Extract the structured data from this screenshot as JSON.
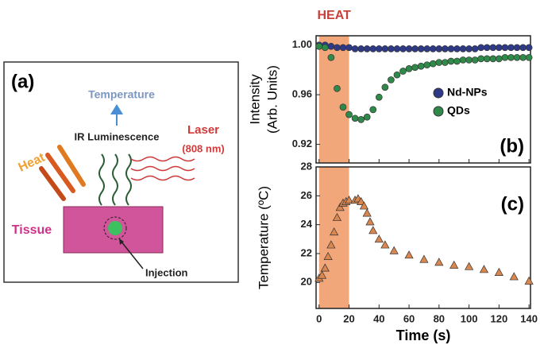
{
  "diagram": {
    "panel_label": "(a)",
    "temperature": "Temperature",
    "ir": "IR Luminescence",
    "heat": "Heat",
    "laser": "Laser",
    "laser_wavelength": "(808 nm)",
    "tissue": "Tissue",
    "injection": "Injection"
  },
  "chart_data": [
    {
      "type": "scatter",
      "panel_label": "(b)",
      "ylabel": [
        "Intensity",
        "(Arb. Units)"
      ],
      "annotation": "HEAT",
      "shade": {
        "from": 0,
        "to": 20,
        "color": "#f2a77a"
      },
      "xlim": [
        -2,
        141
      ],
      "xticks": [
        0,
        20,
        40,
        60,
        80,
        100,
        120,
        140
      ],
      "ylim": [
        0.905,
        1.0075
      ],
      "yticks": [
        0.92,
        0.96,
        {
          "value": 1,
          "label": "1.00"
        }
      ],
      "x": [
        0,
        4,
        8,
        12,
        16,
        20,
        24,
        28,
        32,
        36,
        40,
        44,
        48,
        52,
        56,
        60,
        64,
        68,
        72,
        76,
        80,
        84,
        88,
        92,
        96,
        100,
        104,
        108,
        112,
        116,
        120,
        124,
        128,
        132,
        136,
        140
      ],
      "series": [
        {
          "name": "Nd-NPs",
          "color": "#2e3a87",
          "values": [
            1.0,
            1.0,
            0.999,
            0.998,
            0.998,
            0.998,
            0.997,
            0.997,
            0.997,
            0.997,
            0.997,
            0.997,
            0.997,
            0.997,
            0.997,
            0.997,
            0.997,
            0.997,
            0.997,
            0.997,
            0.997,
            0.997,
            0.997,
            0.997,
            0.997,
            0.997,
            0.997,
            0.998,
            0.998,
            0.998,
            0.998,
            0.998,
            0.998,
            0.998,
            0.998,
            0.998
          ]
        },
        {
          "name": "QDs",
          "color": "#2f8a4a",
          "values": [
            0.999,
            0.998,
            0.99,
            0.965,
            0.95,
            0.944,
            0.941,
            0.94,
            0.942,
            0.948,
            0.958,
            0.966,
            0.972,
            0.976,
            0.979,
            0.981,
            0.982,
            0.983,
            0.984,
            0.985,
            0.986,
            0.986,
            0.987,
            0.987,
            0.988,
            0.988,
            0.988,
            0.989,
            0.989,
            0.989,
            0.989,
            0.99,
            0.99,
            0.99,
            0.99,
            0.99
          ]
        }
      ]
    },
    {
      "type": "scatter",
      "panel_label": "(c)",
      "ylabel": [
        "Temperature (ºC)"
      ],
      "xlabel": "Time (s)",
      "marker": "triangle",
      "shade": {
        "from": 0,
        "to": 20,
        "color": "#f2a77a"
      },
      "xlim": [
        -2,
        141
      ],
      "xticks": [
        0,
        20,
        40,
        60,
        80,
        100,
        120,
        140
      ],
      "ylim": [
        18.2,
        28
      ],
      "yticks": [
        20,
        22,
        24,
        26,
        28
      ],
      "x": [
        0,
        2,
        4,
        6,
        8,
        10,
        12,
        14,
        16,
        18,
        20,
        24,
        26,
        28,
        30,
        32,
        34,
        36,
        40,
        44,
        50,
        60,
        70,
        80,
        90,
        100,
        110,
        120,
        130,
        140
      ],
      "series": [
        {
          "color": "#d9874f",
          "values": [
            20.3,
            20.5,
            21.0,
            21.8,
            22.6,
            23.5,
            24.5,
            25.2,
            25.5,
            25.6,
            25.7,
            25.7,
            25.8,
            25.6,
            25.3,
            24.8,
            24.2,
            23.6,
            23.0,
            22.6,
            22.2,
            21.9,
            21.6,
            21.4,
            21.2,
            21.1,
            20.9,
            20.7,
            20.4,
            20.1
          ]
        }
      ]
    }
  ]
}
